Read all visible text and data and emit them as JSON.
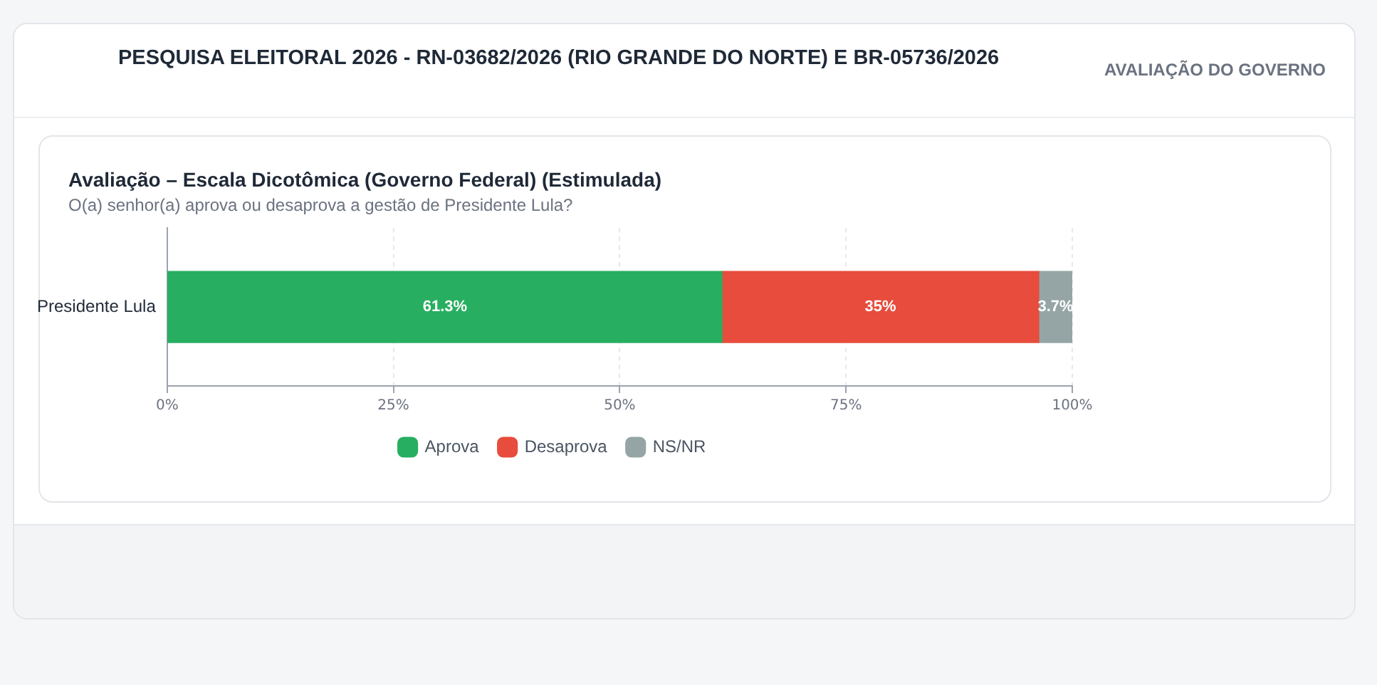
{
  "chart_data": {
    "type": "bar",
    "orientation": "horizontal",
    "stacked": true,
    "title": "Avaliação – Escala Dicotômica (Governo Federal) (Estimulada)",
    "subtitle": "O(a) senhor(a) aprova ou desaprova a gestão de Presidente Lula?",
    "annotations": [
      "PESQUISA ELEITORAL 2026 - RN-03682/2026 (RIO GRANDE DO NORTE) E BR-05736/2026",
      "AVALIAÇÃO DO GOVERNO"
    ],
    "categories": [
      "Presidente Lula"
    ],
    "series": [
      {
        "name": "Aprova",
        "color": "#27ae60",
        "values": [
          61.3
        ],
        "value_labels": [
          "61.3%"
        ]
      },
      {
        "name": "Desaprova",
        "color": "#e74c3c",
        "values": [
          35
        ],
        "value_labels": [
          "35%"
        ]
      },
      {
        "name": "NS/NR",
        "color": "#95a5a6",
        "values": [
          3.7
        ],
        "value_labels": [
          "3.7%"
        ]
      }
    ],
    "xlim": [
      0,
      100
    ],
    "xticks": [
      {
        "value": 0,
        "label": "0%"
      },
      {
        "value": 25,
        "label": "25%"
      },
      {
        "value": 50,
        "label": "50%"
      },
      {
        "value": 75,
        "label": "75%"
      },
      {
        "value": 100,
        "label": "100%"
      }
    ],
    "grid": "x",
    "legend": "bottom"
  }
}
